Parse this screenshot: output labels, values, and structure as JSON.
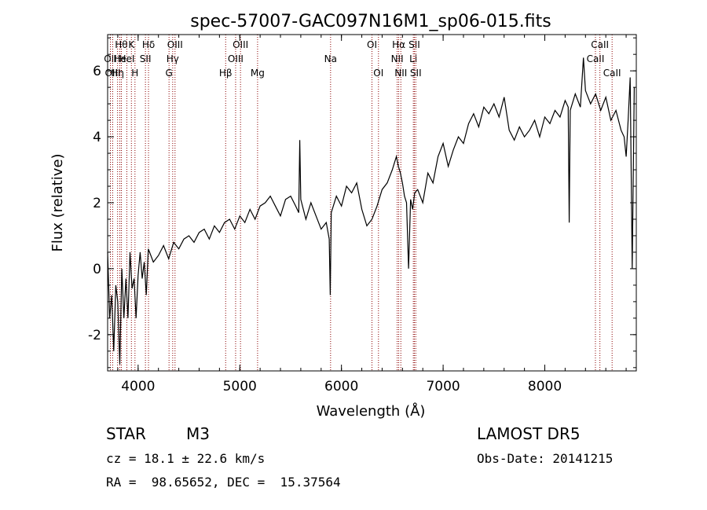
{
  "chart_data": {
    "type": "line",
    "title": "spec-57007-GAC097N16M1_sp06-015.fits",
    "xlabel": "Wavelength (Å)",
    "ylabel": "Flux (relative)",
    "xlim": [
      3700,
      8900
    ],
    "ylim": [
      -3.1,
      7.1
    ],
    "xticks": [
      4000,
      5000,
      6000,
      7000,
      8000
    ],
    "yticks": [
      -2,
      0,
      2,
      4,
      6
    ],
    "grid": false,
    "series": [
      {
        "x": [
          3700,
          3720,
          3740,
          3760,
          3780,
          3800,
          3820,
          3840,
          3860,
          3880,
          3900,
          3920,
          3940,
          3960,
          3980,
          4000,
          4020,
          4040,
          4060,
          4080,
          4100,
          4150,
          4200,
          4250,
          4300,
          4350,
          4400,
          4450,
          4500,
          4550,
          4600,
          4650,
          4700,
          4750,
          4800,
          4850,
          4900,
          4950,
          5000,
          5050,
          5100,
          5150,
          5200,
          5250,
          5300,
          5350,
          5400,
          5450,
          5500,
          5550,
          5580,
          5590,
          5600,
          5650,
          5700,
          5750,
          5800,
          5850,
          5880,
          5890,
          5900,
          5950,
          6000,
          6050,
          6100,
          6150,
          6200,
          6250,
          6300,
          6350,
          6400,
          6450,
          6500,
          6520,
          6540,
          6560,
          6580,
          6600,
          6620,
          6640,
          6660,
          6680,
          6700,
          6720,
          6750,
          6800,
          6850,
          6900,
          6950,
          7000,
          7050,
          7100,
          7150,
          7200,
          7250,
          7300,
          7350,
          7400,
          7450,
          7500,
          7550,
          7600,
          7650,
          7700,
          7750,
          7800,
          7850,
          7900,
          7950,
          8000,
          8050,
          8100,
          8150,
          8200,
          8230,
          8240,
          8250,
          8300,
          8350,
          8380,
          8400,
          8450,
          8500,
          8550,
          8600,
          8650,
          8700,
          8750,
          8780,
          8800,
          8820,
          8840,
          8860,
          8880
        ],
        "y": [
          0.5,
          -1.5,
          -0.8,
          -2.5,
          -0.5,
          -1.0,
          -2.9,
          0.0,
          -1.5,
          -0.3,
          -1.5,
          0.5,
          -0.6,
          -0.3,
          -1.5,
          -0.2,
          0.5,
          -0.3,
          0.2,
          -0.8,
          0.6,
          0.2,
          0.4,
          0.7,
          0.3,
          0.8,
          0.6,
          0.9,
          1.0,
          0.8,
          1.1,
          1.2,
          0.9,
          1.3,
          1.1,
          1.4,
          1.5,
          1.2,
          1.6,
          1.4,
          1.8,
          1.5,
          1.9,
          2.0,
          2.2,
          1.9,
          1.6,
          2.1,
          2.2,
          1.9,
          1.7,
          3.9,
          2.1,
          1.5,
          2.0,
          1.6,
          1.2,
          1.4,
          0.9,
          -0.8,
          1.7,
          2.2,
          1.9,
          2.5,
          2.3,
          2.6,
          1.8,
          1.3,
          1.5,
          1.9,
          2.4,
          2.6,
          3.0,
          3.2,
          3.4,
          3.1,
          2.9,
          2.6,
          2.2,
          2.0,
          0.0,
          2.1,
          1.8,
          2.3,
          2.4,
          2.0,
          2.9,
          2.6,
          3.4,
          3.8,
          3.1,
          3.6,
          4.0,
          3.8,
          4.4,
          4.7,
          4.3,
          4.9,
          4.7,
          5.0,
          4.6,
          5.2,
          4.2,
          3.9,
          4.3,
          4.0,
          4.2,
          4.5,
          4.0,
          4.6,
          4.4,
          4.8,
          4.6,
          5.1,
          4.9,
          1.4,
          4.8,
          5.3,
          4.9,
          6.4,
          5.4,
          5.0,
          5.3,
          4.8,
          5.2,
          4.5,
          4.8,
          4.2,
          4.0,
          3.4,
          4.5,
          5.8,
          0.0,
          5.5
        ]
      }
    ],
    "lines": [
      {
        "x": 3727,
        "label": "OII",
        "row": 2
      },
      {
        "x": 3750,
        "label": "OIII",
        "row": 3
      },
      {
        "x": 3798,
        "label": "Hη",
        "row": 3
      },
      {
        "x": 3820,
        "label": "He",
        "row": 2
      },
      {
        "x": 3835,
        "label": "Hθ",
        "row": 1
      },
      {
        "x": 3889,
        "label": "HeI",
        "row": 2
      },
      {
        "x": 3934,
        "label": "K",
        "row": 1
      },
      {
        "x": 3969,
        "label": "H",
        "row": 3
      },
      {
        "x": 4072,
        "label": "SII",
        "row": 2
      },
      {
        "x": 4102,
        "label": "Hδ",
        "row": 1
      },
      {
        "x": 4304,
        "label": "G",
        "row": 3
      },
      {
        "x": 4340,
        "label": "Hγ",
        "row": 2
      },
      {
        "x": 4363,
        "label": "OIII",
        "row": 1
      },
      {
        "x": 4861,
        "label": "Hβ",
        "row": 3
      },
      {
        "x": 4959,
        "label": "OIII",
        "row": 2
      },
      {
        "x": 5007,
        "label": "OIII",
        "row": 1
      },
      {
        "x": 5175,
        "label": "Mg",
        "row": 3
      },
      {
        "x": 5893,
        "label": "Na",
        "row": 2
      },
      {
        "x": 6300,
        "label": "OI",
        "row": 1
      },
      {
        "x": 6364,
        "label": "OI",
        "row": 3
      },
      {
        "x": 6548,
        "label": "NII",
        "row": 2
      },
      {
        "x": 6563,
        "label": "Hα",
        "row": 1
      },
      {
        "x": 6584,
        "label": "NII",
        "row": 3
      },
      {
        "x": 6707,
        "label": "Li",
        "row": 2
      },
      {
        "x": 6717,
        "label": "SII",
        "row": 1
      },
      {
        "x": 6731,
        "label": "SII",
        "row": 3
      },
      {
        "x": 8498,
        "label": "CaII",
        "row": 2
      },
      {
        "x": 8542,
        "label": "CaII",
        "row": 1
      },
      {
        "x": 8662,
        "label": "CaII",
        "row": 3
      }
    ]
  },
  "info": {
    "object_class": "STAR",
    "subclass": "M3",
    "survey": "LAMOST DR5",
    "cz": "cz = 18.1 ± 22.6 km/s",
    "obs_date": "Obs-Date: 20141215",
    "coords": "RA =  98.65652, DEC =  15.37564"
  },
  "colors": {
    "line": "#000000",
    "marker_lines": "#8b0000",
    "axes": "#000000"
  }
}
